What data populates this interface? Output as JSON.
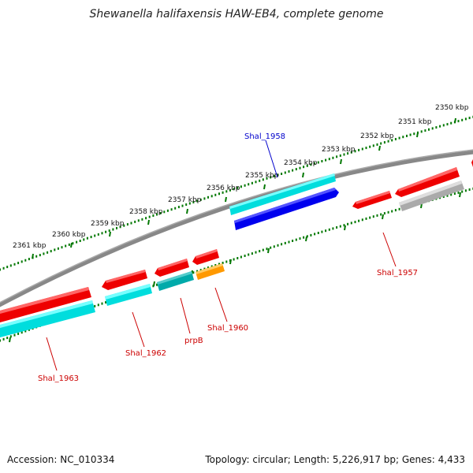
{
  "title": "Shewanella halifaxensis HAW-EB4, complete genome",
  "footer": {
    "accession": "Accession: NC_010334",
    "summary": "Topology: circular; Length: 5,226,917 bp; Genes: 4,433"
  },
  "ticks": [
    {
      "label": "2350 kbp"
    },
    {
      "label": "2351 kbp"
    },
    {
      "label": "2352 kbp"
    },
    {
      "label": "2353 kbp"
    },
    {
      "label": "2354 kbp"
    },
    {
      "label": "2355 kbp"
    },
    {
      "label": "2356 kbp"
    },
    {
      "label": "2357 kbp"
    },
    {
      "label": "2358 kbp"
    },
    {
      "label": "2359 kbp"
    },
    {
      "label": "2360 kbp"
    },
    {
      "label": "2361 kbp"
    }
  ],
  "genes": [
    {
      "name": "Shal_1958",
      "color": "#0000cc"
    },
    {
      "name": "Shal_1957",
      "color": "#cc0000"
    },
    {
      "name": "Shal_1960",
      "color": "#cc0000"
    },
    {
      "name": "prpB",
      "color": "#cc0000"
    },
    {
      "name": "Shal_1962",
      "color": "#cc0000"
    },
    {
      "name": "Shal_1963",
      "color": "#cc0000"
    }
  ],
  "colors": {
    "forward_gene": "#ff0000",
    "reverse_gene": "#0000ff",
    "cds_cyan": "#00e5e5",
    "cds_teal": "#00aaaa",
    "cds_orange": "#ff9900",
    "cds_gray": "#bbbbbb",
    "backbone": "#777777",
    "ruler": "#007700"
  }
}
